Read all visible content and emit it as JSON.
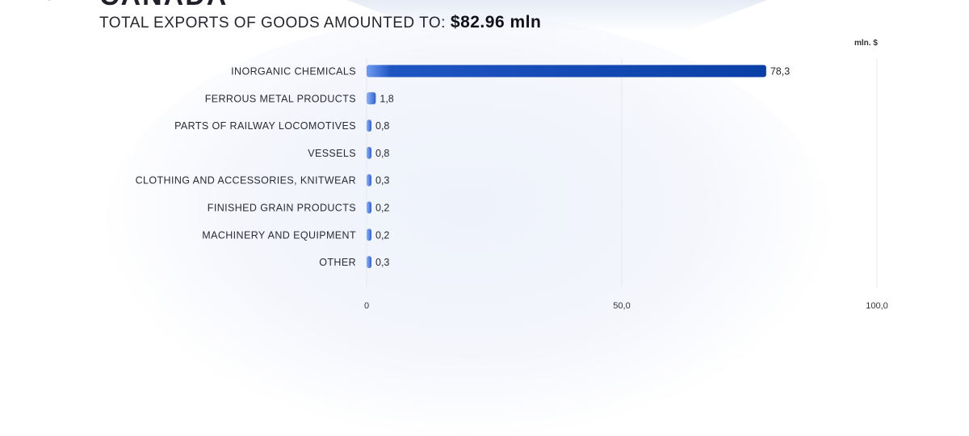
{
  "header": {
    "title_partial": "CANADA",
    "subtitle": "TOTAL EXPORTS OF GOODS AMOUNTED TO:",
    "amount": "$82.96 mln"
  },
  "chart_data": {
    "type": "bar",
    "orientation": "horizontal",
    "unit": "mln. $",
    "categories": [
      "INORGANIC CHEMICALS",
      "FERROUS METAL PRODUCTS",
      "PARTS OF RAILWAY LOCOMOTIVES",
      "VESSELS",
      "CLOTHING AND ACCESSORIES, KNITWEAR",
      "FINISHED GRAIN PRODUCTS",
      "MACHINERY AND EQUIPMENT",
      "OTHER"
    ],
    "values": [
      78.3,
      1.8,
      0.8,
      0.8,
      0.3,
      0.2,
      0.2,
      0.3
    ],
    "value_labels": [
      "78,3",
      "1,8",
      "0,8",
      "0,8",
      "0,3",
      "0,2",
      "0,2",
      "0,3"
    ],
    "xlim": [
      0,
      100
    ],
    "xticks": [
      0,
      50,
      100
    ],
    "xtick_labels": [
      "0",
      "50,0",
      "100,0"
    ],
    "grid": true,
    "colors": {
      "bar_dark": "#0a3fa6",
      "bar_light": "#5b8ff0",
      "grid": "#e6e8ee"
    }
  }
}
